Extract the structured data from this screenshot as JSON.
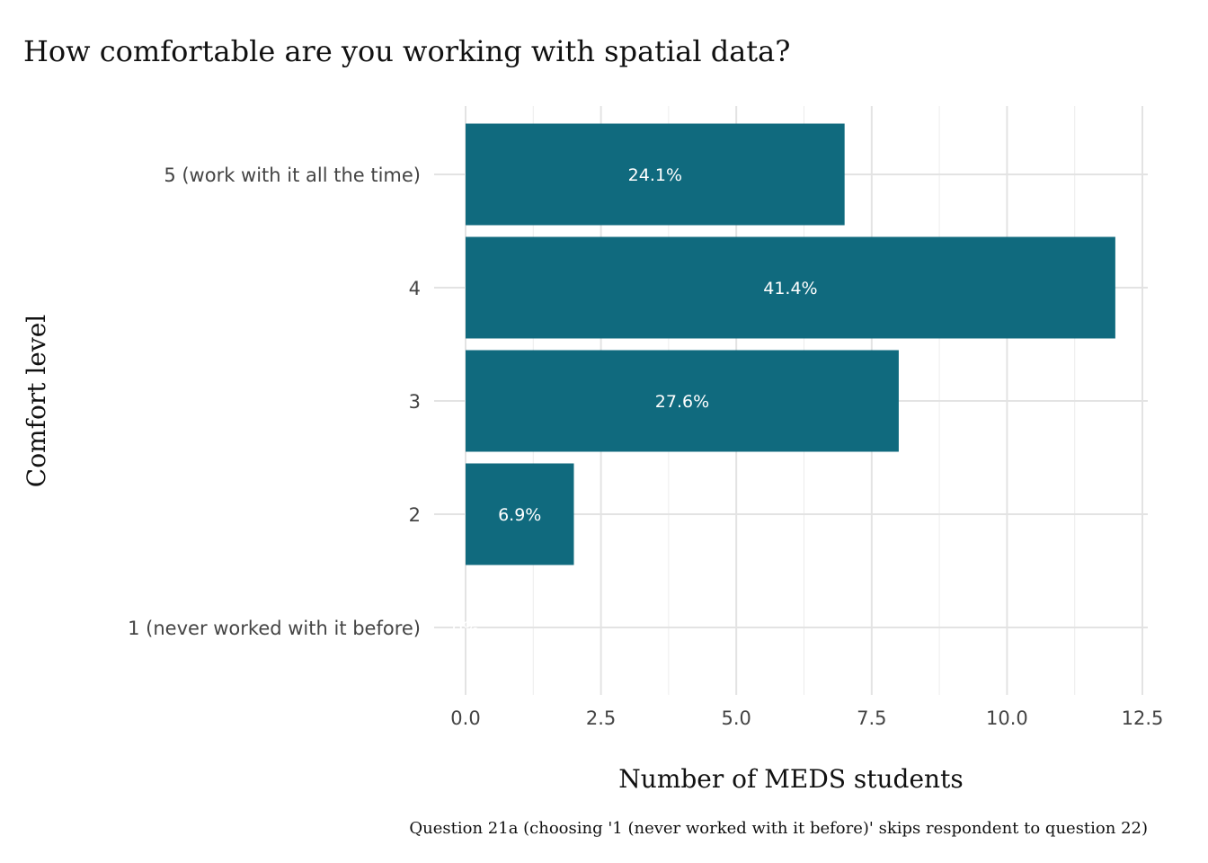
{
  "chart_data": {
    "type": "bar",
    "orientation": "horizontal",
    "title": "How comfortable are you working with spatial data?",
    "xlabel": "Number of MEDS students",
    "ylabel": "Comfort level",
    "caption": "Question 21a (choosing '1 (never worked with it before)' skips respondent to question 22)",
    "categories": [
      "5 (work with it all the time)",
      "4",
      "3",
      "2",
      "1 (never worked with it before)"
    ],
    "values": [
      7,
      12,
      8,
      2,
      0
    ],
    "labels": [
      "24.1%",
      "41.4%",
      "27.6%",
      "6.9%",
      "0%"
    ],
    "xlim": [
      0,
      12.5
    ],
    "xticks": [
      "0.0",
      "2.5",
      "5.0",
      "7.5",
      "10.0",
      "12.5"
    ],
    "grid": true,
    "bar_color": "#106a7e"
  }
}
